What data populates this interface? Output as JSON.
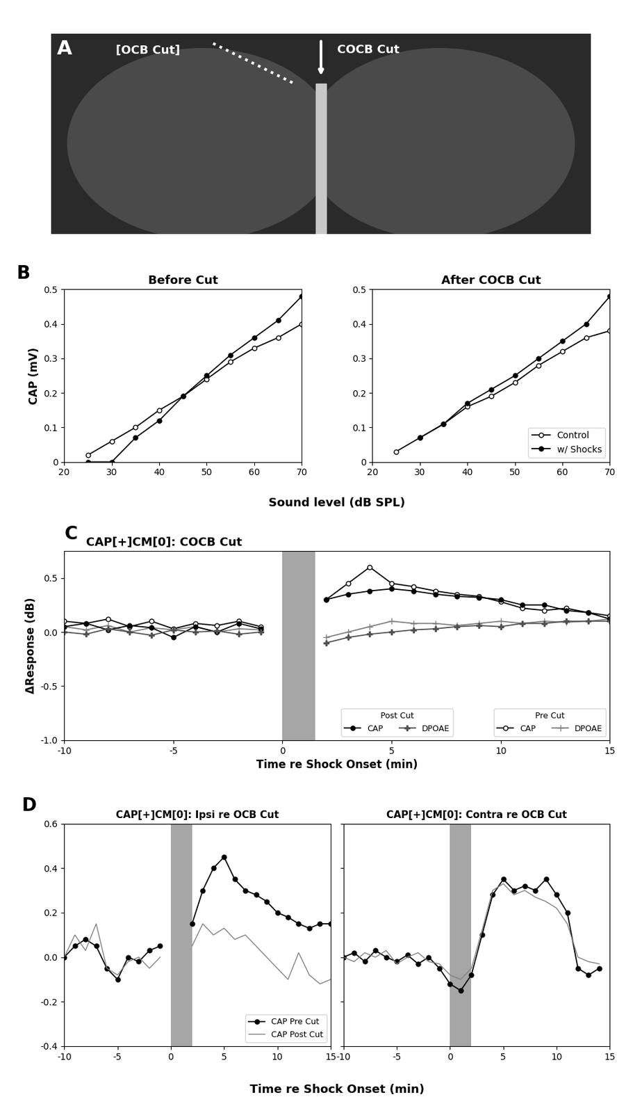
{
  "chart_data": [
    {
      "type": "image",
      "label": "A",
      "annotations": [
        "[OCB Cut]",
        "COCB Cut"
      ]
    },
    {
      "type": "line",
      "label": "B",
      "xlabel": "Sound level (dB SPL)",
      "ylabel": "CAP (mV)",
      "legend": "lower right",
      "panels": [
        {
          "title": "Before Cut",
          "x": [
            25,
            30,
            35,
            40,
            45,
            50,
            55,
            60,
            65,
            70
          ],
          "xlim": [
            20,
            70
          ],
          "xticks": [
            20,
            30,
            40,
            50,
            60,
            70
          ],
          "ylim": [
            0,
            0.5
          ],
          "yticks": [
            0,
            0.1,
            0.2,
            0.3,
            0.4,
            0.5
          ],
          "series": [
            {
              "name": "Control",
              "color": "#000000",
              "marker": "open_circle",
              "values": [
                0.02,
                0.06,
                0.1,
                0.15,
                0.19,
                0.24,
                0.29,
                0.33,
                0.36,
                0.4
              ]
            },
            {
              "name": "w/ Shocks",
              "color": "#000000",
              "marker": "circle",
              "values": [
                0.0,
                0.0,
                0.07,
                0.12,
                0.19,
                0.25,
                0.31,
                0.36,
                0.41,
                0.48
              ]
            }
          ]
        },
        {
          "title": "After COCB Cut",
          "x": [
            25,
            30,
            35,
            40,
            45,
            50,
            55,
            60,
            65,
            70
          ],
          "xlim": [
            20,
            70
          ],
          "xticks": [
            20,
            30,
            40,
            50,
            60,
            70
          ],
          "ylim": [
            0,
            0.5
          ],
          "yticks": [
            0,
            0.1,
            0.2,
            0.3,
            0.4,
            0.5
          ],
          "series": [
            {
              "name": "Control",
              "color": "#000000",
              "marker": "open_circle",
              "values": [
                0.03,
                0.07,
                0.11,
                0.16,
                0.19,
                0.23,
                0.28,
                0.32,
                0.36,
                0.38
              ]
            },
            {
              "name": "w/ Shocks",
              "color": "#000000",
              "marker": "circle",
              "values": [
                null,
                0.07,
                0.11,
                0.17,
                0.21,
                0.25,
                0.3,
                0.35,
                0.4,
                0.48
              ]
            }
          ]
        }
      ]
    },
    {
      "type": "line",
      "label": "C",
      "title": "CAP[+]CM[0]: COCB Cut",
      "xlabel": "Time re Shock Onset (min)",
      "ylabel": "ΔResponse (dB)",
      "legend": "lower right",
      "shock_interval": [
        0,
        1.5
      ],
      "x": [
        -10,
        -9,
        -8,
        -7,
        -6,
        -5,
        -4,
        -3,
        -2,
        -1,
        0,
        1,
        2,
        3,
        4,
        5,
        6,
        7,
        8,
        9,
        10,
        11,
        12,
        13,
        14,
        15
      ],
      "xlim": [
        -10,
        15
      ],
      "xticks": [
        -10,
        -5,
        0,
        5,
        10,
        15
      ],
      "ylim": [
        -1.0,
        0.75
      ],
      "yticks": [
        {
          "value": -1.0,
          "label": "-1.0"
        },
        {
          "value": -0.5,
          "label": "-0.5"
        },
        {
          "value": 0.0,
          "label": "0.0"
        },
        {
          "value": 0.5,
          "label": "0.5"
        }
      ],
      "series": [
        {
          "name": "CAP",
          "group": "Pre Cut",
          "color": "#000000",
          "marker": "open_circle",
          "values": [
            0.1,
            0.08,
            0.12,
            0.05,
            0.1,
            0.03,
            0.08,
            0.06,
            0.1,
            0.05,
            null,
            null,
            0.3,
            0.45,
            0.6,
            0.45,
            0.42,
            0.38,
            0.35,
            0.33,
            0.28,
            0.22,
            0.2,
            0.22,
            0.18,
            0.15
          ]
        },
        {
          "name": "DPOAE",
          "group": "Pre Cut",
          "color": "#808080",
          "marker": "plus",
          "values": [
            0.05,
            0.02,
            0.06,
            0.0,
            0.04,
            0.02,
            0.05,
            0.0,
            0.03,
            0.02,
            null,
            null,
            -0.05,
            0.0,
            0.05,
            0.1,
            0.08,
            0.08,
            0.06,
            0.08,
            0.1,
            0.08,
            0.1,
            0.09,
            0.1,
            0.12
          ]
        },
        {
          "name": "CAP",
          "group": "Post Cut",
          "color": "#000000",
          "marker": "circle",
          "values": [
            0.05,
            0.08,
            0.02,
            0.06,
            0.04,
            -0.05,
            0.05,
            0.0,
            0.08,
            0.03,
            null,
            null,
            0.3,
            0.35,
            0.38,
            0.4,
            0.38,
            0.35,
            0.33,
            0.32,
            0.3,
            0.25,
            0.25,
            0.2,
            0.18,
            0.12
          ]
        },
        {
          "name": "DPOAE",
          "group": "Post Cut",
          "color": "#505050",
          "marker": "filled_plus",
          "values": [
            0.0,
            -0.02,
            0.03,
            0.0,
            -0.03,
            0.02,
            0.0,
            0.01,
            -0.02,
            0.0,
            null,
            null,
            -0.1,
            -0.05,
            -0.02,
            0.0,
            0.02,
            0.03,
            0.05,
            0.06,
            0.05,
            0.08,
            0.08,
            0.1,
            0.1,
            0.1
          ]
        }
      ]
    },
    {
      "type": "line",
      "label": "D",
      "xlabel": "Time re Shock Onset (min)",
      "legend": "lower right",
      "shock_interval": [
        0,
        2
      ],
      "panels": [
        {
          "title": "CAP[+]CM[0]: Ipsi re OCB Cut",
          "x": [
            -10,
            -9,
            -8,
            -7,
            -6,
            -5,
            -4,
            -3,
            -2,
            -1,
            0,
            1,
            2,
            3,
            4,
            5,
            6,
            7,
            8,
            9,
            10,
            11,
            12,
            13,
            14,
            15
          ],
          "xlim": [
            -10,
            15
          ],
          "xticks": [
            -10,
            -5,
            0,
            5,
            10,
            15
          ],
          "ylim": [
            -0.4,
            0.6
          ],
          "yticks": [
            {
              "value": -0.4,
              "label": "-0.4"
            },
            {
              "value": -0.2,
              "label": "-0.2"
            },
            {
              "value": 0.0,
              "label": "0.0"
            },
            {
              "value": 0.2,
              "label": "0.2"
            },
            {
              "value": 0.4,
              "label": "0.4"
            },
            {
              "value": 0.6,
              "label": "0.6"
            }
          ],
          "series": [
            {
              "name": "CAP Pre Cut",
              "color": "#000000",
              "marker": "circle",
              "values": [
                0.0,
                0.05,
                0.08,
                0.05,
                -0.05,
                -0.1,
                0.0,
                -0.02,
                0.03,
                0.05,
                null,
                null,
                0.15,
                0.3,
                0.4,
                0.45,
                0.35,
                0.3,
                0.28,
                0.25,
                0.2,
                0.18,
                0.15,
                0.13,
                0.15,
                0.15
              ]
            },
            {
              "name": "CAP Post Cut",
              "color": "#808080",
              "marker": "none",
              "values": [
                0.0,
                0.1,
                0.03,
                0.15,
                -0.05,
                -0.08,
                -0.02,
                0.0,
                -0.05,
                0.0,
                null,
                null,
                0.05,
                0.15,
                0.1,
                0.13,
                0.08,
                0.1,
                0.05,
                0.0,
                -0.05,
                -0.1,
                0.02,
                -0.08,
                -0.12,
                -0.1
              ]
            }
          ]
        },
        {
          "title": "CAP[+]CM[0]: Contra re OCB Cut",
          "tick_labels": "x",
          "x": [
            -10,
            -9,
            -8,
            -7,
            -6,
            -5,
            -4,
            -3,
            -2,
            -1,
            0,
            1,
            2,
            3,
            4,
            5,
            6,
            7,
            8,
            9,
            10,
            11,
            12,
            13,
            14,
            15
          ],
          "xlim": [
            -10,
            15
          ],
          "xticks": [
            -10,
            -5,
            0,
            5,
            10,
            15
          ],
          "ylim": [
            -0.4,
            0.6
          ],
          "yticks": [
            -0.4,
            -0.2,
            0.0,
            0.2,
            0.4,
            0.6
          ],
          "series": [
            {
              "name": "CAP Pre Cut",
              "color": "#000000",
              "marker": "circle",
              "values": [
                0.0,
                0.02,
                -0.02,
                0.03,
                0.0,
                -0.02,
                0.01,
                -0.03,
                0.0,
                -0.05,
                -0.12,
                -0.15,
                -0.08,
                0.1,
                0.28,
                0.35,
                0.3,
                0.32,
                0.3,
                0.35,
                0.28,
                0.2,
                -0.05,
                -0.08,
                -0.05,
                null
              ]
            },
            {
              "name": "CAP Post Cut",
              "color": "#808080",
              "marker": "none",
              "values": [
                0.0,
                -0.02,
                0.02,
                0.0,
                0.03,
                -0.03,
                0.0,
                0.02,
                -0.02,
                -0.03,
                -0.08,
                -0.1,
                -0.05,
                0.12,
                0.3,
                0.33,
                0.28,
                0.3,
                0.27,
                0.25,
                0.22,
                0.15,
                0.0,
                -0.02,
                -0.03,
                null
              ]
            }
          ]
        }
      ]
    }
  ]
}
